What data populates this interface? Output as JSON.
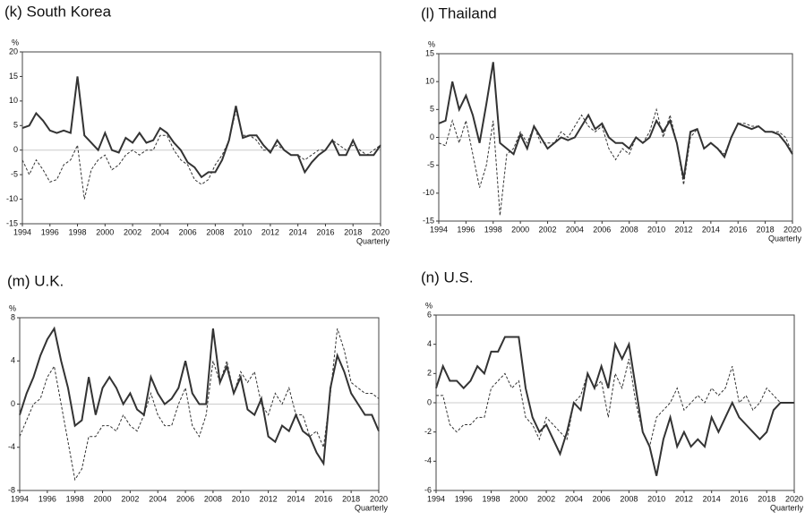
{
  "chart_data": [
    {
      "type": "line",
      "title": "(k) South Korea",
      "ylabel": "%",
      "xlabel": "Quarterly",
      "zero_line": true,
      "x": [
        1994,
        1994.5,
        1995,
        1995.5,
        1996,
        1996.5,
        1997,
        1997.5,
        1998,
        1998.5,
        1999,
        1999.5,
        2000,
        2000.5,
        2001,
        2001.5,
        2002,
        2002.5,
        2003,
        2003.5,
        2004,
        2004.5,
        2005,
        2005.5,
        2006,
        2006.5,
        2007,
        2007.5,
        2008,
        2008.5,
        2009,
        2009.5,
        2010,
        2010.5,
        2011,
        2011.5,
        2012,
        2012.5,
        2013,
        2013.5,
        2014,
        2014.5,
        2015,
        2015.5,
        2016,
        2016.5,
        2017,
        2017.5,
        2018,
        2018.5,
        2019,
        2019.5,
        2020
      ],
      "xlim": [
        1994,
        2020
      ],
      "xticks": [
        1994,
        1996,
        1998,
        2000,
        2002,
        2004,
        2006,
        2008,
        2010,
        2012,
        2014,
        2016,
        2018,
        2020
      ],
      "ylim": [
        -15,
        20
      ],
      "yticks": [
        -15,
        -10,
        -5,
        0,
        5,
        10,
        15,
        20
      ],
      "series": [
        {
          "color": "#333333",
          "dashed": false,
          "values": [
            4.5,
            5,
            7.5,
            6,
            4,
            3.5,
            4,
            3.5,
            15,
            3,
            1.5,
            0,
            3.5,
            0,
            -0.5,
            2.5,
            1.5,
            3.5,
            1.5,
            2,
            4.5,
            3.5,
            1.5,
            0,
            -2.5,
            -3.5,
            -5.5,
            -4.5,
            -4.5,
            -2,
            2,
            9,
            2.5,
            3,
            3,
            1,
            -0.5,
            2,
            0,
            -1,
            -1,
            -4.5,
            -2.5,
            -1,
            0,
            2,
            -1,
            -1,
            2,
            -1,
            -1,
            -1,
            1
          ]
        },
        {
          "color": "#333333",
          "dashed": true,
          "values": [
            -2,
            -5,
            -2,
            -4,
            -6.5,
            -6,
            -3,
            -2,
            1,
            -10,
            -4,
            -2,
            -1,
            -4,
            -3,
            -1,
            0,
            -1,
            0,
            0,
            3,
            3,
            0,
            -2,
            -3,
            -6,
            -7,
            -6,
            -3,
            -1,
            2,
            8,
            3,
            3,
            2,
            0,
            0,
            1,
            0,
            -1,
            -1,
            -2,
            -1,
            0,
            0,
            2,
            1,
            0,
            1,
            0,
            -1,
            0,
            1
          ]
        }
      ]
    },
    {
      "type": "line",
      "title": "(l) Thailand",
      "ylabel": "%",
      "xlabel": "Quarterly",
      "zero_line": true,
      "x": [
        1994,
        1994.5,
        1995,
        1995.5,
        1996,
        1996.5,
        1997,
        1997.5,
        1998,
        1998.5,
        1999,
        1999.5,
        2000,
        2000.5,
        2001,
        2001.5,
        2002,
        2002.5,
        2003,
        2003.5,
        2004,
        2004.5,
        2005,
        2005.5,
        2006,
        2006.5,
        2007,
        2007.5,
        2008,
        2008.5,
        2009,
        2009.5,
        2010,
        2010.5,
        2011,
        2011.5,
        2012,
        2012.5,
        2013,
        2013.5,
        2014,
        2014.5,
        2015,
        2015.5,
        2016,
        2016.5,
        2017,
        2017.5,
        2018,
        2018.5,
        2019,
        2019.5,
        2020
      ],
      "xlim": [
        1994,
        2020
      ],
      "xticks": [
        1994,
        1996,
        1998,
        2000,
        2002,
        2004,
        2006,
        2008,
        2010,
        2012,
        2014,
        2016,
        2018,
        2020
      ],
      "ylim": [
        -15,
        15
      ],
      "yticks": [
        -15,
        -10,
        -5,
        0,
        5,
        10,
        15
      ],
      "series": [
        {
          "color": "#333333",
          "dashed": false,
          "values": [
            2.5,
            3,
            10,
            5,
            7.5,
            4,
            -1,
            6,
            13.5,
            -1,
            -2,
            -3,
            0.5,
            -2,
            2,
            0,
            -2,
            -1,
            0,
            -0.5,
            0,
            2,
            4,
            1.5,
            2.5,
            0,
            -1,
            -1,
            -2,
            0,
            -1,
            0,
            3,
            1,
            3,
            -1,
            -7.5,
            1,
            1.5,
            -2,
            -1,
            -2,
            -3.5,
            0,
            2.5,
            2,
            1.5,
            2,
            1,
            1,
            0.5,
            -1,
            -3
          ]
        },
        {
          "color": "#333333",
          "dashed": true,
          "values": [
            -1,
            -1.5,
            3,
            -1,
            3,
            -3,
            -9,
            -5,
            3,
            -14,
            -3,
            -2,
            1,
            -1,
            2,
            -1,
            -1,
            -1,
            1,
            0,
            2,
            4,
            2,
            1,
            2,
            -2,
            -4,
            -2,
            -3,
            0,
            -1,
            1,
            5,
            0,
            4,
            -1,
            -8.5,
            0,
            1.5,
            -2,
            -1,
            -2,
            -3,
            0,
            2.5,
            2.5,
            2,
            2,
            1,
            1,
            1,
            0,
            -3
          ]
        }
      ]
    },
    {
      "type": "line",
      "title": "(m) U.K.",
      "ylabel": "%",
      "xlabel": "Quarterly",
      "zero_line": true,
      "x": [
        1994,
        1994.5,
        1995,
        1995.5,
        1996,
        1996.5,
        1997,
        1997.5,
        1998,
        1998.5,
        1999,
        1999.5,
        2000,
        2000.5,
        2001,
        2001.5,
        2002,
        2002.5,
        2003,
        2003.5,
        2004,
        2004.5,
        2005,
        2005.5,
        2006,
        2006.5,
        2007,
        2007.5,
        2008,
        2008.5,
        2009,
        2009.5,
        2010,
        2010.5,
        2011,
        2011.5,
        2012,
        2012.5,
        2013,
        2013.5,
        2014,
        2014.5,
        2015,
        2015.5,
        2016,
        2016.5,
        2017,
        2017.5,
        2018,
        2018.5,
        2019,
        2019.5,
        2020
      ],
      "xlim": [
        1994,
        2020
      ],
      "xticks": [
        1994,
        1996,
        1998,
        2000,
        2002,
        2004,
        2006,
        2008,
        2010,
        2012,
        2014,
        2016,
        2018,
        2020
      ],
      "ylim": [
        -8,
        8
      ],
      "yticks": [
        -8,
        -4,
        0,
        4,
        8
      ],
      "series": [
        {
          "color": "#333333",
          "dashed": false,
          "values": [
            -1,
            1,
            2.5,
            4.5,
            6,
            7,
            4,
            1.5,
            -2,
            -1.5,
            2.5,
            -1,
            1.5,
            2.5,
            1.5,
            0,
            1,
            -0.5,
            -1,
            2.5,
            1,
            0,
            0.5,
            1.5,
            4,
            1,
            0,
            0,
            7,
            2,
            3.5,
            1,
            2.5,
            -0.5,
            -1,
            0.5,
            -3,
            -3.5,
            -2,
            -2.5,
            -1,
            -2.5,
            -3,
            -4.5,
            -5.5,
            1.5,
            4.5,
            3,
            1,
            0,
            -1,
            -1,
            -2.5
          ]
        },
        {
          "color": "#333333",
          "dashed": true,
          "values": [
            -3,
            -1.5,
            0,
            0.5,
            2.5,
            3.5,
            0,
            -3.5,
            -7,
            -6,
            -3,
            -3,
            -2,
            -2,
            -2.5,
            -1,
            -2,
            -2.5,
            -1,
            1,
            -1,
            -2,
            -2,
            0,
            1.5,
            -2,
            -3,
            -1,
            4,
            2,
            4,
            1,
            3,
            2,
            3,
            0,
            -1,
            1,
            0,
            1.5,
            -1,
            -1,
            -3,
            -2.5,
            -4,
            1,
            7,
            5,
            2,
            1.5,
            1,
            1,
            0.5
          ]
        }
      ]
    },
    {
      "type": "line",
      "title": "(n) U.S.",
      "ylabel": "%",
      "xlabel": "Quarterly",
      "zero_line": true,
      "x": [
        1994,
        1994.5,
        1995,
        1995.5,
        1996,
        1996.5,
        1997,
        1997.5,
        1998,
        1998.5,
        1999,
        1999.5,
        2000,
        2000.5,
        2001,
        2001.5,
        2002,
        2002.5,
        2003,
        2003.5,
        2004,
        2004.5,
        2005,
        2005.5,
        2006,
        2006.5,
        2007,
        2007.5,
        2008,
        2008.5,
        2009,
        2009.5,
        2010,
        2010.5,
        2011,
        2011.5,
        2012,
        2012.5,
        2013,
        2013.5,
        2014,
        2014.5,
        2015,
        2015.5,
        2016,
        2016.5,
        2017,
        2017.5,
        2018,
        2018.5,
        2019,
        2019.5,
        2020
      ],
      "xlim": [
        1994,
        2020
      ],
      "xticks": [
        1994,
        1996,
        1998,
        2000,
        2002,
        2004,
        2006,
        2008,
        2010,
        2012,
        2014,
        2016,
        2018,
        2020
      ],
      "ylim": [
        -6,
        6
      ],
      "yticks": [
        -6,
        -4,
        -2,
        0,
        2,
        4,
        6
      ],
      "series": [
        {
          "color": "#333333",
          "dashed": false,
          "values": [
            1,
            2.5,
            1.5,
            1.5,
            1,
            1.5,
            2.5,
            2,
            3.5,
            3.5,
            4.5,
            4.5,
            4.5,
            1,
            -1,
            -2,
            -1.5,
            -2.5,
            -3.5,
            -2,
            0,
            -0.5,
            2,
            1,
            2.5,
            1,
            4,
            3,
            4,
            1,
            -2,
            -3,
            -5,
            -2.5,
            -1,
            -3,
            -2,
            -3,
            -2.5,
            -3,
            -1,
            -2,
            -1,
            0,
            -1,
            -1.5,
            -2,
            -2.5,
            -2,
            -0.5,
            0,
            0,
            0
          ]
        },
        {
          "color": "#333333",
          "dashed": true,
          "values": [
            0.5,
            0.5,
            -1.5,
            -2,
            -1.5,
            -1.5,
            -1,
            -1,
            1,
            1.5,
            2,
            1,
            1.5,
            -1,
            -1.5,
            -2.5,
            -1,
            -1.5,
            -2,
            -2.5,
            0,
            0.5,
            2,
            1,
            1.5,
            -1,
            2,
            1,
            3,
            0,
            -2,
            -3,
            -1,
            -0.5,
            0,
            1,
            -0.5,
            0,
            0.5,
            0,
            1,
            0.5,
            1,
            2.5,
            0,
            0.5,
            -0.5,
            0,
            1,
            0.5,
            0,
            0,
            0
          ]
        }
      ]
    }
  ]
}
